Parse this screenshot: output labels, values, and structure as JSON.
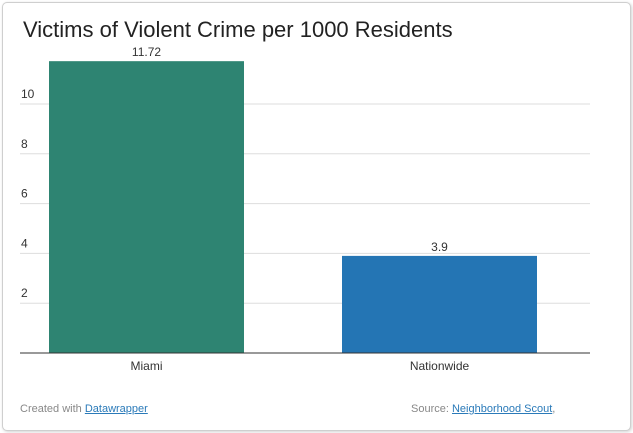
{
  "chart_data": {
    "type": "bar",
    "title": "Victims of Violent Crime per 1000 Residents",
    "categories": [
      "Miami",
      "Nationwide"
    ],
    "values": [
      11.72,
      3.9
    ],
    "value_labels": [
      "11.72",
      "3.9"
    ],
    "colors": [
      "#2e8472",
      "#2475b4"
    ],
    "yticks": [
      "2",
      "4",
      "6",
      "8",
      "10"
    ],
    "ylim": [
      0,
      12
    ],
    "grid": true,
    "xlabel": "",
    "ylabel": ""
  },
  "footer": {
    "credit_prefix": "Created with",
    "credit_link": "Datawrapper",
    "source_prefix": "Source:",
    "source_link": "Neighborhood Scout",
    "source_suffix": ","
  }
}
